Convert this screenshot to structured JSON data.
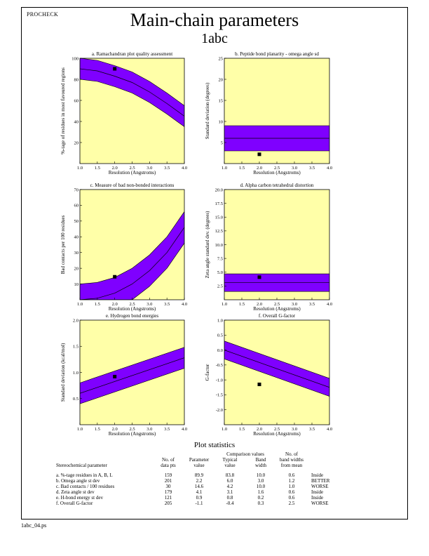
{
  "program": "PROCHECK",
  "title": "Main-chain parameters",
  "subtitle": "1abc",
  "footer": "1abc_04.ps",
  "colors": {
    "plot_bg": "#ffffa8",
    "band": "#7f00ff",
    "line": "#000000"
  },
  "chart_data": [
    {
      "type": "line",
      "title": "a. Ramachandran plot quality assessment",
      "xlabel": "Resolution (Angstroms)",
      "ylabel": "%-tage of residues in most favoured regions",
      "xlim": [
        1.0,
        4.0
      ],
      "ylim": [
        0,
        100
      ],
      "xticks": [
        "1.0",
        "1.5",
        "2.0",
        "2.5",
        "3.0",
        "3.5",
        "4.0"
      ],
      "yticks": [
        "20",
        "40",
        "60",
        "80",
        "100"
      ],
      "band": {
        "x": [
          1.0,
          1.5,
          2.0,
          2.5,
          3.0,
          3.5,
          4.0
        ],
        "mean": [
          90,
          88,
          83,
          77,
          68,
          57,
          45
        ],
        "upper": [
          100,
          98,
          93,
          87,
          78,
          67,
          55
        ],
        "lower": [
          80,
          78,
          73,
          67,
          58,
          47,
          35
        ]
      },
      "point": {
        "x": 2.0,
        "y": 90
      }
    },
    {
      "type": "line",
      "title": "b. Peptide bond planarity - omega angle sd",
      "xlabel": "Resolution (Angstroms)",
      "ylabel": "Standard deviation (degrees)",
      "xlim": [
        1.0,
        4.0
      ],
      "ylim": [
        0,
        25
      ],
      "xticks": [
        "1.0",
        "1.5",
        "2.0",
        "2.5",
        "3.0",
        "3.5",
        "4.0"
      ],
      "yticks": [
        "5",
        "10",
        "15",
        "20",
        "25"
      ],
      "band": {
        "x": [
          1.0,
          4.0
        ],
        "mean": [
          6.0,
          6.0
        ],
        "upper": [
          9.0,
          9.0
        ],
        "lower": [
          3.0,
          3.0
        ]
      },
      "point": {
        "x": 2.0,
        "y": 2.2
      }
    },
    {
      "type": "line",
      "title": "c. Measure of bad non-bonded interactions",
      "xlabel": "Resolution (Angstroms)",
      "ylabel": "Bad contacts per 100 residues",
      "xlim": [
        1.0,
        4.0
      ],
      "ylim": [
        0,
        70
      ],
      "xticks": [
        "1.0",
        "1.5",
        "2.0",
        "2.5",
        "3.0",
        "3.5",
        "4.0"
      ],
      "yticks": [
        "10",
        "20",
        "30",
        "40",
        "50",
        "60",
        "70"
      ],
      "band": {
        "x": [
          1.0,
          1.5,
          2.0,
          2.5,
          3.0,
          3.5,
          4.0
        ],
        "mean": [
          0.0,
          1.0,
          4.2,
          10.0,
          18.5,
          30.0,
          46.0
        ],
        "upper": [
          10.0,
          11.0,
          14.2,
          20.0,
          28.5,
          40.0,
          56.0
        ],
        "lower": [
          0.0,
          0.0,
          0.0,
          0.0,
          8.5,
          20.0,
          36.0
        ]
      },
      "point": {
        "x": 2.0,
        "y": 14.6
      }
    },
    {
      "type": "line",
      "title": "d. Alpha carbon tetrahedral distortion",
      "xlabel": "Resolution (Angstroms)",
      "ylabel": "Zeta angle standard dev. (degrees)",
      "xlim": [
        1.0,
        4.0
      ],
      "ylim": [
        0,
        20
      ],
      "xticks": [
        "1.0",
        "1.5",
        "2.0",
        "2.5",
        "3.0",
        "3.5",
        "4.0"
      ],
      "yticks": [
        "2.5",
        "5.0",
        "7.5",
        "10.0",
        "12.5",
        "15.0",
        "17.5",
        "20.0"
      ],
      "band": {
        "x": [
          1.0,
          4.0
        ],
        "mean": [
          3.1,
          3.1
        ],
        "upper": [
          4.7,
          4.7
        ],
        "lower": [
          1.5,
          1.5
        ]
      },
      "point": {
        "x": 2.0,
        "y": 4.1
      }
    },
    {
      "type": "line",
      "title": "e. Hydrogen bond energies",
      "xlabel": "Resolution (Angstroms)",
      "ylabel": "Standard deviation (kcal/mol)",
      "xlim": [
        1.0,
        4.0
      ],
      "ylim": [
        0,
        2.0
      ],
      "xticks": [
        "1.0",
        "1.5",
        "2.0",
        "2.5",
        "3.0",
        "3.5",
        "4.0"
      ],
      "yticks": [
        "0.5",
        "1.0",
        "1.5",
        "2.0"
      ],
      "band": {
        "x": [
          1.0,
          4.0
        ],
        "mean": [
          0.6,
          1.28
        ],
        "upper": [
          0.8,
          1.48
        ],
        "lower": [
          0.4,
          1.08
        ]
      },
      "point": {
        "x": 2.0,
        "y": 0.92
      }
    },
    {
      "type": "line",
      "title": "f. Overall G-factor",
      "xlabel": "Resolution (Angstroms)",
      "ylabel": "G-factor",
      "xlim": [
        1.0,
        4.0
      ],
      "ylim": [
        -2.5,
        1.0
      ],
      "xticks": [
        "1.0",
        "1.5",
        "2.0",
        "2.5",
        "3.0",
        "3.5",
        "4.0"
      ],
      "yticks": [
        "-2.0",
        "-1.5",
        "-1.0",
        "-0.5",
        "0.0",
        "0.5",
        "1.0"
      ],
      "band": {
        "x": [
          1.0,
          4.0
        ],
        "mean": [
          0.0,
          -1.25
        ],
        "upper": [
          0.3,
          -0.95
        ],
        "lower": [
          -0.3,
          -1.55
        ]
      },
      "point": {
        "x": 2.0,
        "y": -1.15
      }
    }
  ],
  "stats": {
    "title": "Plot statistics",
    "header_top": [
      "",
      "",
      "",
      "Comparison values",
      "",
      "No. of"
    ],
    "header_mid": [
      "",
      "No. of",
      "Parameter",
      "Typical",
      "Band",
      "band widths"
    ],
    "header_bot": [
      "Stereochemical parameter",
      "data pts",
      "value",
      "value",
      "width",
      "from mean"
    ],
    "rows": [
      [
        "a. %-tage residues in A, B, L",
        "159",
        "89.9",
        "83.8",
        "10.0",
        "0.6",
        "Inside"
      ],
      [
        "b. Omega angle st dev",
        "201",
        "2.2",
        "6.0",
        "3.0",
        "1.2",
        "BETTER"
      ],
      [
        "c. Bad contacts / 100 residues",
        "30",
        "14.6",
        "4.2",
        "10.0",
        "1.0",
        "WORSE"
      ],
      [
        "d. Zeta angle st dev",
        "179",
        "4.1",
        "3.1",
        "1.6",
        "0.6",
        "Inside"
      ],
      [
        "e. H-bond energy st dev",
        "121",
        "0.9",
        "0.8",
        "0.2",
        "0.6",
        "Inside"
      ],
      [
        "f. Overall G-factor",
        "205",
        "-1.1",
        "-0.4",
        "0.3",
        "2.5",
        "WORSE"
      ]
    ]
  }
}
